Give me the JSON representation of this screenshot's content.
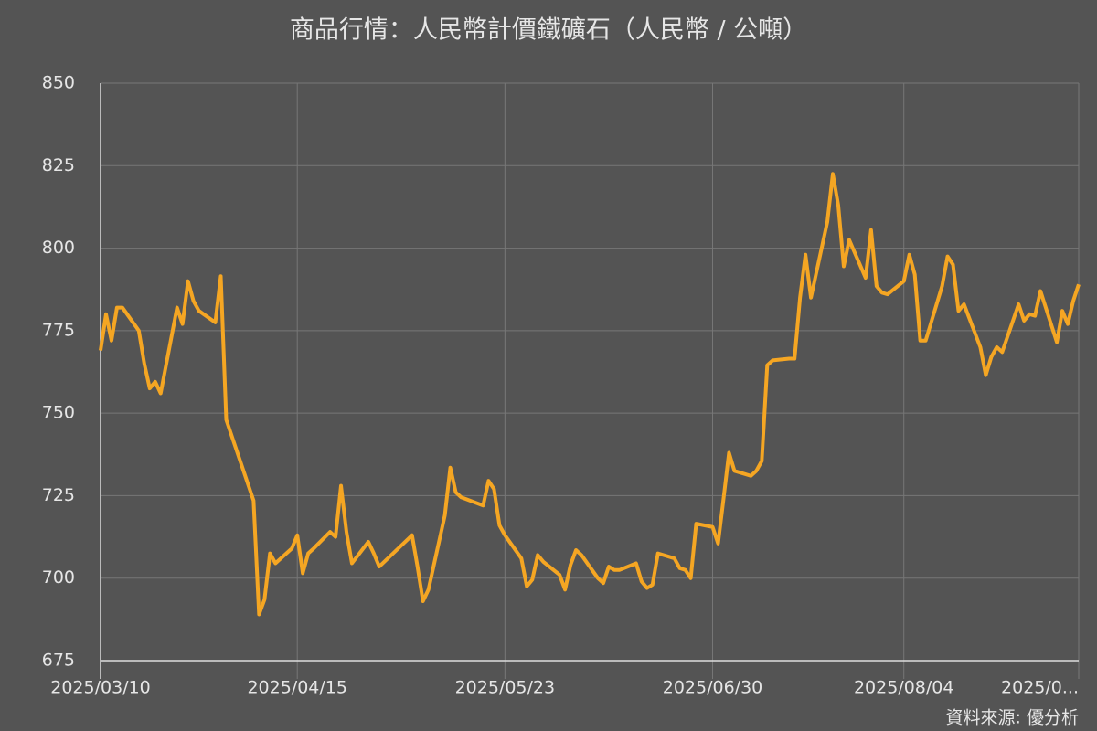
{
  "chart_data": {
    "type": "line",
    "title": "商品行情：人民幣計價鐵礦石（人民幣 / 公噸）",
    "source": "資料來源: 優分析",
    "color": "#f5a623",
    "grid": true,
    "x": [
      "2025/03/10",
      "2025/03/11",
      "2025/03/12",
      "2025/03/13",
      "2025/03/14",
      "2025/03/17",
      "2025/03/18",
      "2025/03/19",
      "2025/03/20",
      "2025/03/21",
      "2025/03/24",
      "2025/03/25",
      "2025/03/26",
      "2025/03/27",
      "2025/03/28",
      "2025/03/31",
      "2025/04/01",
      "2025/04/02",
      "2025/04/07",
      "2025/04/08",
      "2025/04/09",
      "2025/04/10",
      "2025/04/11",
      "2025/04/14",
      "2025/04/15",
      "2025/04/16",
      "2025/04/17",
      "2025/04/18",
      "2025/04/21",
      "2025/04/22",
      "2025/04/23",
      "2025/04/24",
      "2025/04/25",
      "2025/04/28",
      "2025/04/29",
      "2025/04/30",
      "2025/05/06",
      "2025/05/07",
      "2025/05/08",
      "2025/05/09",
      "2025/05/12",
      "2025/05/13",
      "2025/05/14",
      "2025/05/15",
      "2025/05/19",
      "2025/05/20",
      "2025/05/21",
      "2025/05/22",
      "2025/05/23",
      "2025/05/26",
      "2025/05/27",
      "2025/05/28",
      "2025/05/29",
      "2025/05/30",
      "2025/06/02",
      "2025/06/03",
      "2025/06/04",
      "2025/06/05",
      "2025/06/06",
      "2025/06/09",
      "2025/06/10",
      "2025/06/11",
      "2025/06/12",
      "2025/06/13",
      "2025/06/16",
      "2025/06/17",
      "2025/06/18",
      "2025/06/19",
      "2025/06/20",
      "2025/06/23",
      "2025/06/24",
      "2025/06/25",
      "2025/06/26",
      "2025/06/27",
      "2025/06/30",
      "2025/07/01",
      "2025/07/02",
      "2025/07/03",
      "2025/07/04",
      "2025/07/07",
      "2025/07/08",
      "2025/07/09",
      "2025/07/10",
      "2025/07/11",
      "2025/07/14",
      "2025/07/15",
      "2025/07/16",
      "2025/07/17",
      "2025/07/18",
      "2025/07/21",
      "2025/07/22",
      "2025/07/23",
      "2025/07/24",
      "2025/07/25",
      "2025/07/28",
      "2025/07/29",
      "2025/07/30",
      "2025/07/31",
      "2025/08/01",
      "2025/08/04",
      "2025/08/05",
      "2025/08/06",
      "2025/08/07",
      "2025/08/08",
      "2025/08/11",
      "2025/08/12",
      "2025/08/13",
      "2025/08/14",
      "2025/08/15",
      "2025/08/18",
      "2025/08/19",
      "2025/08/20",
      "2025/08/21",
      "2025/08/22",
      "2025/08/25",
      "2025/08/26",
      "2025/08/27",
      "2025/08/28",
      "2025/08/29",
      "2025/09/01",
      "2025/09/02",
      "2025/09/03",
      "2025/09/04",
      "2025/09/05"
    ],
    "values": [
      769,
      780,
      772,
      782,
      782,
      775,
      765,
      757.5,
      759.5,
      756,
      782,
      777,
      790,
      784,
      781,
      777.5,
      791.5,
      748,
      723.5,
      689,
      693.5,
      707.5,
      704.5,
      709,
      713,
      701.5,
      707.5,
      709,
      714,
      712.5,
      728,
      714,
      704.5,
      711,
      707.5,
      703.5,
      713,
      703.5,
      693,
      696.5,
      719,
      733.5,
      726,
      724.5,
      722,
      729.5,
      727,
      716,
      713,
      706,
      697.5,
      699.5,
      707,
      705,
      701,
      696.5,
      704,
      708.5,
      707,
      700,
      698.5,
      703.5,
      702.5,
      702.5,
      704.5,
      699,
      697,
      698,
      707.5,
      706,
      703,
      702.5,
      700,
      716.5,
      715.5,
      710.5,
      724,
      738,
      732.5,
      731,
      732.5,
      735.5,
      764.5,
      766,
      766.5,
      766.5,
      785,
      798,
      785,
      808,
      822.5,
      813,
      794.5,
      802.5,
      791,
      805.5,
      788.5,
      786.5,
      786,
      790,
      798,
      792,
      772,
      772,
      788.5,
      797.5,
      795,
      781,
      783,
      770,
      761.5,
      767,
      770,
      768.5,
      783,
      778,
      780,
      779.5,
      787,
      771.5,
      781,
      777,
      784,
      789
    ],
    "xlim": [
      "2025/03/10",
      "2025/09/05"
    ],
    "xticks": [
      "2025/03/10",
      "2025/04/15",
      "2025/05/23",
      "2025/06/30",
      "2025/08/04",
      {
        "value": "2025/09/05",
        "label": "2025/0..."
      }
    ],
    "ylim": [
      675,
      850
    ],
    "yticks": [
      675,
      700,
      725,
      750,
      775,
      800,
      825,
      850
    ]
  }
}
